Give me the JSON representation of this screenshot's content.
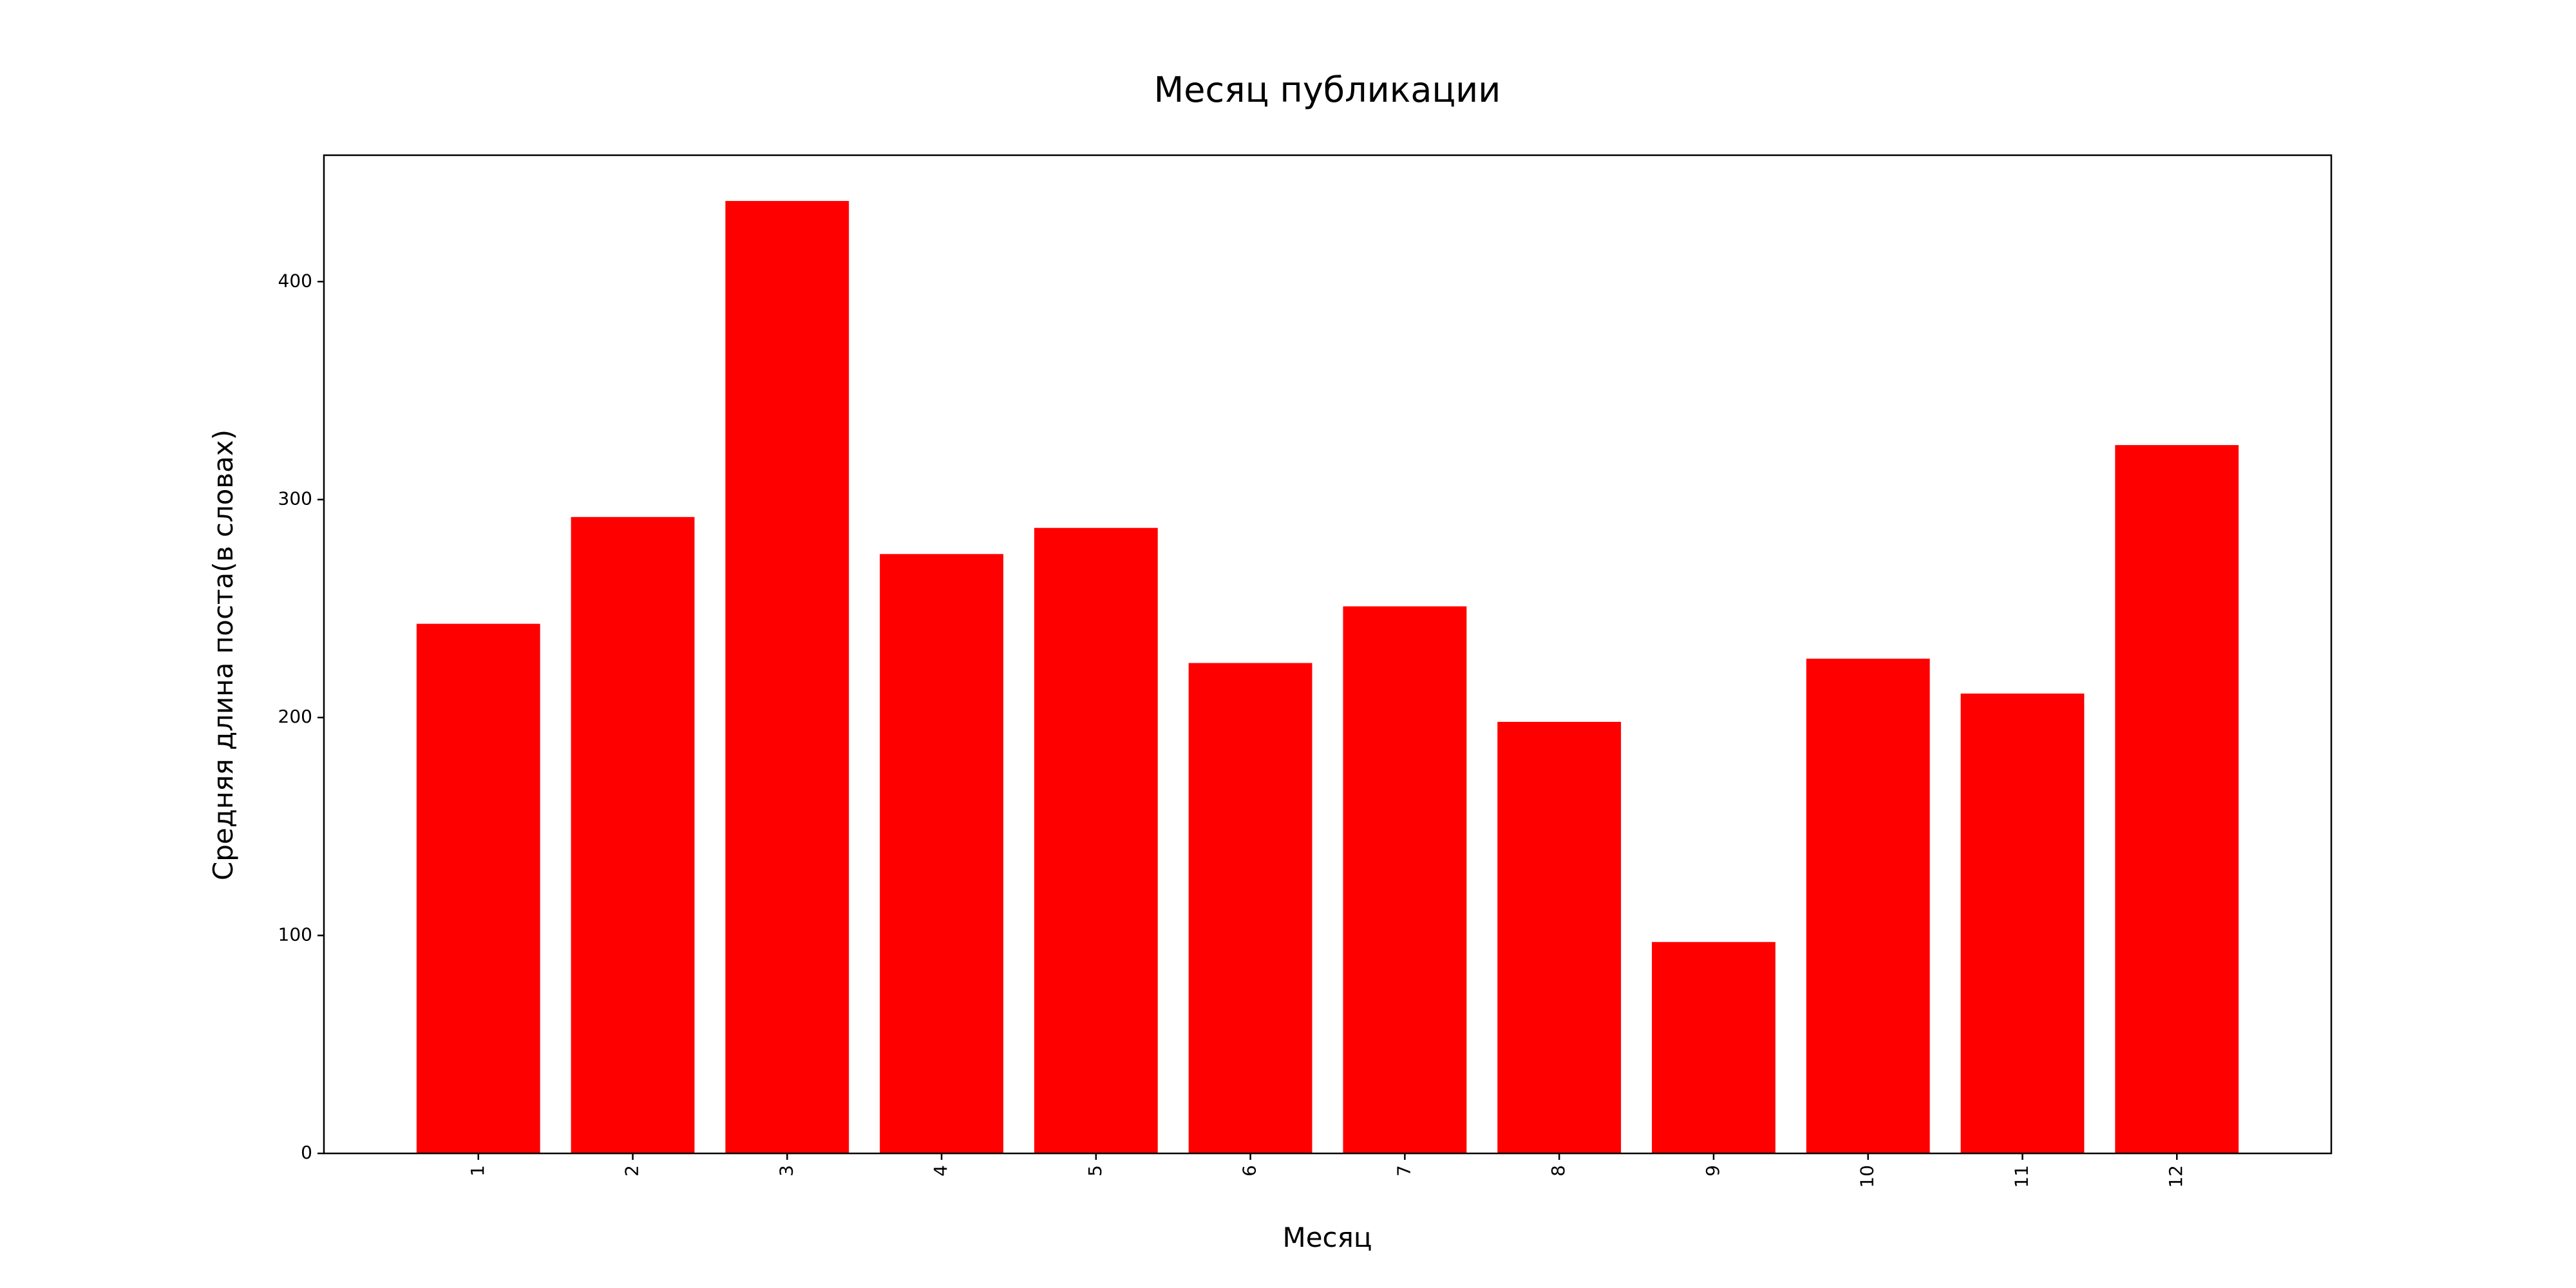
{
  "chart_data": {
    "type": "bar",
    "title": "Месяц публикации",
    "xlabel": "Месяц",
    "ylabel": "Средняя длина поста(в словах)",
    "categories": [
      "1",
      "2",
      "3",
      "4",
      "5",
      "6",
      "7",
      "8",
      "9",
      "10",
      "11",
      "12"
    ],
    "values": [
      243,
      292,
      437,
      275,
      287,
      225,
      251,
      198,
      97,
      227,
      211,
      325
    ],
    "ylim": [
      0,
      458
    ],
    "yticks": [
      0,
      100,
      200,
      300,
      400
    ],
    "x_tick_rotation": "vertical",
    "grid": false,
    "legend": "none",
    "bar_color": "#ff0000"
  }
}
